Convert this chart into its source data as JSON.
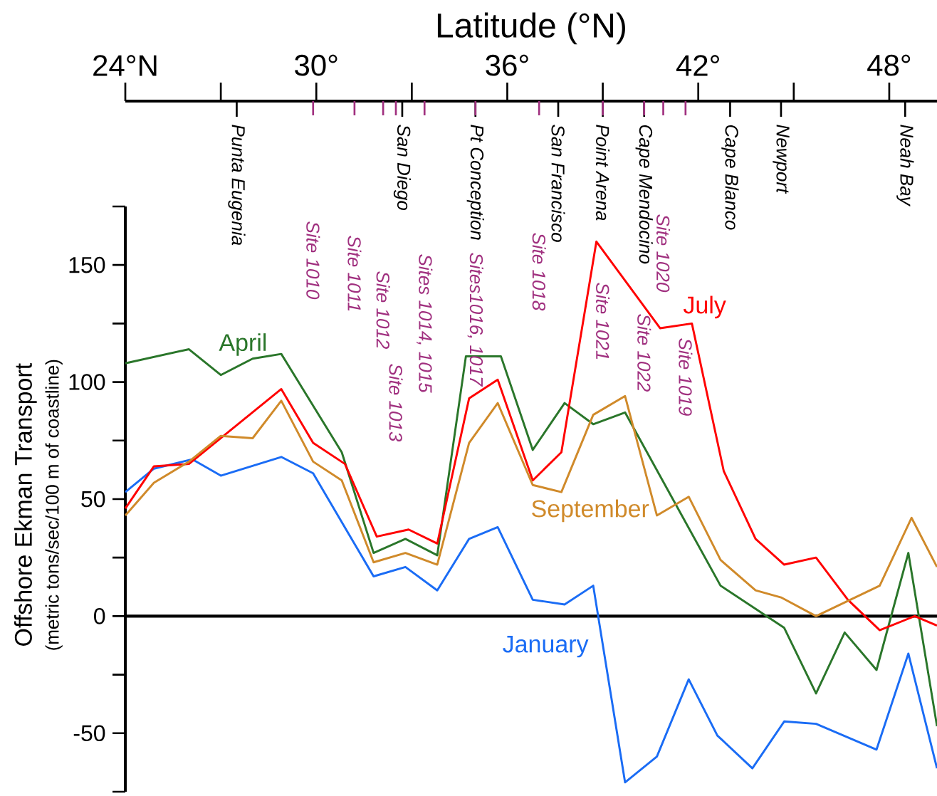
{
  "chart_data": {
    "type": "line",
    "xlabel": "Latitude (°N)",
    "ylabel": "Offshore Ekman Transport",
    "xlim": [
      24,
      49.5
    ],
    "ylim": [
      -75,
      175
    ],
    "xticks": [
      {
        "value": 24,
        "label": "24°N"
      },
      {
        "value": 30,
        "label": "30°"
      },
      {
        "value": 36,
        "label": "36°"
      },
      {
        "value": 42,
        "label": "42°"
      },
      {
        "value": 48,
        "label": "48°"
      }
    ],
    "yticks": [
      {
        "value": 175,
        "label": null
      },
      150,
      {
        "value": 125,
        "label": null
      },
      100,
      {
        "value": 75,
        "label": null
      },
      50,
      {
        "value": 25,
        "label": null
      },
      0,
      {
        "value": -25,
        "label": null
      },
      -50,
      {
        "value": -75,
        "label": null
      }
    ],
    "ref_lines": [
      {
        "axis": "y",
        "value": 0
      }
    ],
    "series": [
      {
        "name": "January",
        "color": "#1a6cf5",
        "x": [
          24,
          24.9,
          26.1,
          27,
          28.9,
          29.9,
          31.8,
          32.8,
          33.8,
          34.8,
          35.7,
          36.8,
          37.8,
          38.7,
          39.7,
          40.7,
          41.7,
          42.6,
          43.7,
          44.7,
          45.7,
          47.6,
          48.6,
          49.5
        ],
        "values": [
          53,
          63,
          67,
          60,
          68,
          61,
          17,
          21,
          11,
          33,
          38,
          7,
          5,
          13,
          -71,
          -60,
          -27,
          -51,
          -65,
          -45,
          -46,
          -57,
          -16,
          -65
        ]
      },
      {
        "name": "April",
        "color": "#2a762a",
        "x": [
          24,
          26,
          27,
          28,
          28.9,
          30.8,
          31.8,
          32.8,
          33.8,
          34.7,
          35.8,
          36.8,
          37.8,
          38.7,
          39.7,
          42.7,
          44.7,
          45.7,
          46.6,
          47.6,
          48.6,
          49.5
        ],
        "values": [
          108,
          114,
          103,
          110,
          112,
          70,
          27,
          33,
          26,
          111,
          111,
          71,
          91,
          82,
          87,
          13,
          -5,
          -33,
          -7,
          -23,
          27,
          -47
        ]
      },
      {
        "name": "July",
        "color": "#ff0000",
        "x": [
          24,
          24.9,
          26,
          28.9,
          29.9,
          30.9,
          31.9,
          32.9,
          33.8,
          34.8,
          35.7,
          36.8,
          37.7,
          38.8,
          40.8,
          41.8,
          42.8,
          43.8,
          44.7,
          45.7,
          46.7,
          47.7,
          48.8,
          49.5
        ],
        "values": [
          46,
          64,
          65,
          97,
          74,
          65,
          34,
          37,
          31,
          93,
          101,
          58,
          70,
          160,
          123,
          125,
          62,
          33,
          22,
          25,
          7,
          -6,
          0,
          -4
        ]
      },
      {
        "name": "September",
        "color": "#d08a2a",
        "x": [
          24,
          24.9,
          26,
          27,
          28,
          28.9,
          29.9,
          30.8,
          31.8,
          32.8,
          33.8,
          34.8,
          35.7,
          36.8,
          37.7,
          38.7,
          39.7,
          40.7,
          41.7,
          42.7,
          43.8,
          44.6,
          45.7,
          47.7,
          48.7,
          49.5
        ],
        "values": [
          43,
          57,
          66,
          77,
          76,
          92,
          66,
          58,
          23,
          27,
          22,
          74,
          91,
          56,
          53,
          86,
          94,
          43,
          51,
          24,
          11,
          8,
          0,
          13,
          42,
          21
        ]
      }
    ],
    "annotations": [
      "(metric tons/sec/100 m of coastline)",
      "Punta Eugenia",
      "San Diego",
      "Pt Conception",
      "San Francisco",
      "Point Arena",
      "Cape Mendocino",
      "Cape Blanco",
      "Newport",
      "Neah Bay",
      "Site 1010",
      "Site 1011",
      "Site 1012",
      "Site 1013",
      "Sites 1014, 1015",
      "Sites1016, 1017",
      "Site 1018",
      "Site 1021",
      "Site 1022",
      "Site 1020",
      "Site 1019"
    ]
  }
}
